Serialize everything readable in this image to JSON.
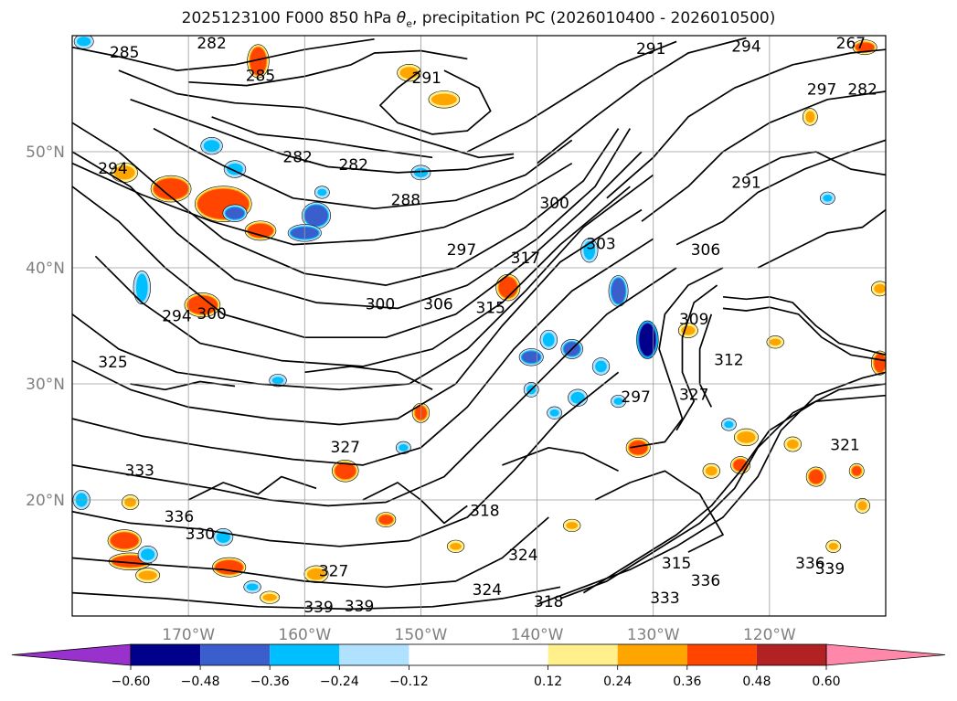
{
  "chart_data": {
    "type": "heatmap",
    "title": {
      "prefix": "2025123100 F000 850 hPa ",
      "symbol": "θ",
      "sub": "e",
      "suffix": ", precipitation PC (2026010400 - 2026010500)"
    },
    "map_extent": {
      "lon": [
        -180,
        -110
      ],
      "lat": [
        10,
        60
      ]
    },
    "grid": true,
    "x_ticks": [
      {
        "lon": -170,
        "label": "170°W"
      },
      {
        "lon": -160,
        "label": "160°W"
      },
      {
        "lon": -150,
        "label": "150°W"
      },
      {
        "lon": -140,
        "label": "140°W"
      },
      {
        "lon": -130,
        "label": "130°W"
      },
      {
        "lon": -120,
        "label": "120°W"
      }
    ],
    "y_ticks": [
      {
        "lat": 20,
        "label": "20°N"
      },
      {
        "lat": 30,
        "label": "30°N"
      },
      {
        "lat": 40,
        "label": "40°N"
      },
      {
        "lat": 50,
        "label": "50°N"
      }
    ],
    "colorbar": {
      "placement": "bottom",
      "extend": "both",
      "bounds": [
        -0.72,
        -0.6,
        -0.48,
        -0.36,
        -0.24,
        -0.12,
        0.12,
        0.24,
        0.36,
        0.48,
        0.6,
        0.72
      ],
      "colors": [
        "#9932cc",
        "#00008b",
        "#3a5fcd",
        "#00bfff",
        "#b0e2ff",
        "#ffffff",
        "#fff08c",
        "#ffa500",
        "#ff4500",
        "#b22222",
        "#ff88aa"
      ],
      "labels": [
        "−0.60",
        "−0.48",
        "−0.36",
        "−0.24",
        "−0.12",
        "0.12",
        "0.24",
        "0.36",
        "0.48",
        "0.60"
      ],
      "label_values": [
        -0.6,
        -0.48,
        -0.36,
        -0.24,
        -0.12,
        0.12,
        0.24,
        0.36,
        0.48,
        0.6
      ]
    },
    "contour_labels": [
      {
        "text": "282",
        "lon": -168,
        "lat": 59.3
      },
      {
        "text": "285",
        "lon": -175.5,
        "lat": 58.5
      },
      {
        "text": "285",
        "lon": -163.8,
        "lat": 56.5
      },
      {
        "text": "291",
        "lon": -149.5,
        "lat": 56.3
      },
      {
        "text": "282",
        "lon": -160.6,
        "lat": 49.5
      },
      {
        "text": "282",
        "lon": -155.8,
        "lat": 48.8
      },
      {
        "text": "288",
        "lon": -151.3,
        "lat": 45.8
      },
      {
        "text": "294",
        "lon": -176.5,
        "lat": 48.5
      },
      {
        "text": "300",
        "lon": -138.5,
        "lat": 45.5
      },
      {
        "text": "297",
        "lon": -146.5,
        "lat": 41.5
      },
      {
        "text": "317",
        "lon": -141.0,
        "lat": 40.8
      },
      {
        "text": "303",
        "lon": -134.5,
        "lat": 42.0
      },
      {
        "text": "306",
        "lon": -125.5,
        "lat": 41.5
      },
      {
        "text": "300",
        "lon": -153.5,
        "lat": 36.8
      },
      {
        "text": "306",
        "lon": -148.5,
        "lat": 36.8
      },
      {
        "text": "315",
        "lon": -144.0,
        "lat": 36.5
      },
      {
        "text": "300",
        "lon": -168.0,
        "lat": 36.0
      },
      {
        "text": "294",
        "lon": -171.0,
        "lat": 35.8
      },
      {
        "text": "325",
        "lon": -176.5,
        "lat": 31.8
      },
      {
        "text": "297",
        "lon": -131.5,
        "lat": 28.8
      },
      {
        "text": "327",
        "lon": -156.5,
        "lat": 24.5
      },
      {
        "text": "333",
        "lon": -174.2,
        "lat": 22.5
      },
      {
        "text": "318",
        "lon": -144.5,
        "lat": 19.0
      },
      {
        "text": "336",
        "lon": -170.8,
        "lat": 18.5
      },
      {
        "text": "330",
        "lon": -169.0,
        "lat": 17.0
      },
      {
        "text": "327",
        "lon": -157.5,
        "lat": 13.8
      },
      {
        "text": "324",
        "lon": -141.2,
        "lat": 15.2
      },
      {
        "text": "324",
        "lon": -144.3,
        "lat": 12.2
      },
      {
        "text": "318",
        "lon": -139.0,
        "lat": 11.2
      },
      {
        "text": "315",
        "lon": -128.0,
        "lat": 14.5
      },
      {
        "text": "336",
        "lon": -125.5,
        "lat": 13.0
      },
      {
        "text": "333",
        "lon": -129.0,
        "lat": 11.5
      },
      {
        "text": "336",
        "lon": -116.5,
        "lat": 14.5
      },
      {
        "text": "339",
        "lon": -114.8,
        "lat": 14.0
      },
      {
        "text": "339",
        "lon": -158.8,
        "lat": 10.7
      },
      {
        "text": "339",
        "lon": -155.3,
        "lat": 10.8
      },
      {
        "text": "321",
        "lon": -113.5,
        "lat": 24.7
      },
      {
        "text": "327",
        "lon": -126.5,
        "lat": 29.0
      },
      {
        "text": "312",
        "lon": -123.5,
        "lat": 32.0
      },
      {
        "text": "309",
        "lon": -126.5,
        "lat": 35.5
      },
      {
        "text": "291",
        "lon": -122.0,
        "lat": 47.3
      },
      {
        "text": "294",
        "lon": -122.0,
        "lat": 59.0
      },
      {
        "text": "291",
        "lon": -130.2,
        "lat": 58.8
      },
      {
        "text": "267",
        "lon": -113.0,
        "lat": 59.3
      },
      {
        "text": "297",
        "lon": -115.5,
        "lat": 55.3
      },
      {
        "text": "282",
        "lon": -112.0,
        "lat": 55.3
      }
    ],
    "precip_cells": [
      {
        "lon": -167.0,
        "lat": 45.5,
        "value": 0.42,
        "rx": 2.2,
        "ry": 1.3
      },
      {
        "lon": -171.5,
        "lat": 46.8,
        "value": 0.38,
        "rx": 1.5,
        "ry": 0.9
      },
      {
        "lon": -175.5,
        "lat": 48.2,
        "value": 0.3,
        "rx": 0.9,
        "ry": 0.6
      },
      {
        "lon": -163.8,
        "lat": 43.2,
        "value": 0.4,
        "rx": 1.1,
        "ry": 0.6
      },
      {
        "lon": -168.8,
        "lat": 36.8,
        "value": 0.38,
        "rx": 1.3,
        "ry": 0.8
      },
      {
        "lon": -164.0,
        "lat": 57.8,
        "value": 0.42,
        "rx": 0.7,
        "ry": 1.2
      },
      {
        "lon": -148.0,
        "lat": 54.5,
        "value": 0.3,
        "rx": 1.1,
        "ry": 0.5
      },
      {
        "lon": -151.0,
        "lat": 56.8,
        "value": 0.3,
        "rx": 0.8,
        "ry": 0.5
      },
      {
        "lon": -142.5,
        "lat": 38.3,
        "value": 0.4,
        "rx": 0.8,
        "ry": 0.9
      },
      {
        "lon": -131.3,
        "lat": 24.5,
        "value": 0.42,
        "rx": 0.8,
        "ry": 0.6
      },
      {
        "lon": -150.0,
        "lat": 27.5,
        "value": 0.4,
        "rx": 0.5,
        "ry": 0.6
      },
      {
        "lon": -156.5,
        "lat": 22.5,
        "value": 0.4,
        "rx": 0.9,
        "ry": 0.7
      },
      {
        "lon": -175.5,
        "lat": 16.5,
        "value": 0.42,
        "rx": 1.2,
        "ry": 0.7
      },
      {
        "lon": -175.0,
        "lat": 14.7,
        "value": 0.4,
        "rx": 1.6,
        "ry": 0.5
      },
      {
        "lon": -166.5,
        "lat": 14.2,
        "value": 0.42,
        "rx": 1.2,
        "ry": 0.6
      },
      {
        "lon": -173.5,
        "lat": 13.5,
        "value": 0.34,
        "rx": 0.8,
        "ry": 0.4
      },
      {
        "lon": -159.0,
        "lat": 13.6,
        "value": 0.34,
        "rx": 0.8,
        "ry": 0.5
      },
      {
        "lon": -153.0,
        "lat": 18.3,
        "value": 0.38,
        "rx": 0.6,
        "ry": 0.4
      },
      {
        "lon": -122.0,
        "lat": 25.4,
        "value": 0.34,
        "rx": 0.8,
        "ry": 0.5
      },
      {
        "lon": -116.0,
        "lat": 22.0,
        "value": 0.4,
        "rx": 0.6,
        "ry": 0.6
      },
      {
        "lon": -122.5,
        "lat": 23.0,
        "value": 0.38,
        "rx": 0.6,
        "ry": 0.5
      },
      {
        "lon": -125.0,
        "lat": 22.5,
        "value": 0.32,
        "rx": 0.5,
        "ry": 0.4
      },
      {
        "lon": -118.0,
        "lat": 24.8,
        "value": 0.3,
        "rx": 0.5,
        "ry": 0.4
      },
      {
        "lon": -112.5,
        "lat": 22.5,
        "value": 0.4,
        "rx": 0.4,
        "ry": 0.4
      },
      {
        "lon": -110.5,
        "lat": 31.8,
        "value": 0.42,
        "rx": 0.5,
        "ry": 0.8
      },
      {
        "lon": -112.0,
        "lat": 19.5,
        "value": 0.3,
        "rx": 0.4,
        "ry": 0.4
      },
      {
        "lon": -127.0,
        "lat": 34.6,
        "value": 0.32,
        "rx": 0.6,
        "ry": 0.4
      },
      {
        "lon": -110.5,
        "lat": 38.2,
        "value": 0.32,
        "rx": 0.5,
        "ry": 0.4
      },
      {
        "lon": -116.5,
        "lat": 53.0,
        "value": 0.3,
        "rx": 0.4,
        "ry": 0.5
      },
      {
        "lon": -111.8,
        "lat": 59.0,
        "value": 0.4,
        "rx": 0.8,
        "ry": 0.4
      },
      {
        "lon": -175.0,
        "lat": 19.8,
        "value": 0.3,
        "rx": 0.5,
        "ry": 0.4
      },
      {
        "lon": -163.0,
        "lat": 11.6,
        "value": 0.3,
        "rx": 0.6,
        "ry": 0.3
      },
      {
        "lon": -137.0,
        "lat": 17.8,
        "value": 0.3,
        "rx": 0.5,
        "ry": 0.3
      },
      {
        "lon": -114.5,
        "lat": 16.0,
        "value": 0.32,
        "rx": 0.4,
        "ry": 0.3
      },
      {
        "lon": -147.0,
        "lat": 16.0,
        "value": 0.3,
        "rx": 0.5,
        "ry": 0.3
      },
      {
        "lon": -119.5,
        "lat": 33.6,
        "value": 0.28,
        "rx": 0.5,
        "ry": 0.3
      },
      {
        "lon": -166.0,
        "lat": 44.7,
        "value": -0.4,
        "rx": 0.8,
        "ry": 0.5
      },
      {
        "lon": -159.0,
        "lat": 44.5,
        "value": -0.44,
        "rx": 1.0,
        "ry": 0.9
      },
      {
        "lon": -160.0,
        "lat": 43.0,
        "value": -0.38,
        "rx": 1.2,
        "ry": 0.5
      },
      {
        "lon": -168.0,
        "lat": 50.5,
        "value": -0.3,
        "rx": 0.7,
        "ry": 0.5
      },
      {
        "lon": -166.0,
        "lat": 48.5,
        "value": -0.3,
        "rx": 0.7,
        "ry": 0.5
      },
      {
        "lon": -150.0,
        "lat": 48.2,
        "value": -0.32,
        "rx": 0.6,
        "ry": 0.4
      },
      {
        "lon": -158.5,
        "lat": 46.5,
        "value": -0.28,
        "rx": 0.4,
        "ry": 0.3
      },
      {
        "lon": -174.0,
        "lat": 38.3,
        "value": -0.34,
        "rx": 0.5,
        "ry": 1.2
      },
      {
        "lon": -179.0,
        "lat": 59.5,
        "value": -0.34,
        "rx": 0.6,
        "ry": 0.4
      },
      {
        "lon": -130.5,
        "lat": 33.8,
        "value": -0.56,
        "rx": 0.7,
        "ry": 1.4
      },
      {
        "lon": -133.0,
        "lat": 38.0,
        "value": -0.44,
        "rx": 0.6,
        "ry": 1.1
      },
      {
        "lon": -135.5,
        "lat": 41.5,
        "value": -0.36,
        "rx": 0.5,
        "ry": 0.8
      },
      {
        "lon": -137.0,
        "lat": 33.0,
        "value": -0.4,
        "rx": 0.7,
        "ry": 0.6
      },
      {
        "lon": -140.5,
        "lat": 32.3,
        "value": -0.4,
        "rx": 0.8,
        "ry": 0.5
      },
      {
        "lon": -139.0,
        "lat": 33.8,
        "value": -0.3,
        "rx": 0.5,
        "ry": 0.6
      },
      {
        "lon": -134.5,
        "lat": 31.5,
        "value": -0.3,
        "rx": 0.5,
        "ry": 0.5
      },
      {
        "lon": -140.5,
        "lat": 29.5,
        "value": -0.28,
        "rx": 0.4,
        "ry": 0.4
      },
      {
        "lon": -136.5,
        "lat": 28.8,
        "value": -0.3,
        "rx": 0.6,
        "ry": 0.5
      },
      {
        "lon": -138.5,
        "lat": 27.5,
        "value": -0.28,
        "rx": 0.4,
        "ry": 0.3
      },
      {
        "lon": -133.0,
        "lat": 28.5,
        "value": -0.28,
        "rx": 0.4,
        "ry": 0.3
      },
      {
        "lon": -173.5,
        "lat": 15.3,
        "value": -0.36,
        "rx": 0.6,
        "ry": 0.5
      },
      {
        "lon": -167.0,
        "lat": 16.8,
        "value": -0.36,
        "rx": 0.6,
        "ry": 0.5
      },
      {
        "lon": -179.2,
        "lat": 20.0,
        "value": -0.32,
        "rx": 0.5,
        "ry": 0.6
      },
      {
        "lon": -164.5,
        "lat": 12.5,
        "value": -0.28,
        "rx": 0.5,
        "ry": 0.3
      },
      {
        "lon": -162.3,
        "lat": 30.3,
        "value": -0.28,
        "rx": 0.5,
        "ry": 0.3
      },
      {
        "lon": -151.5,
        "lat": 24.5,
        "value": -0.28,
        "rx": 0.4,
        "ry": 0.3
      },
      {
        "lon": -123.5,
        "lat": 26.5,
        "value": -0.28,
        "rx": 0.4,
        "ry": 0.3
      },
      {
        "lon": -115.0,
        "lat": 46.0,
        "value": -0.28,
        "rx": 0.4,
        "ry": 0.3
      }
    ]
  }
}
